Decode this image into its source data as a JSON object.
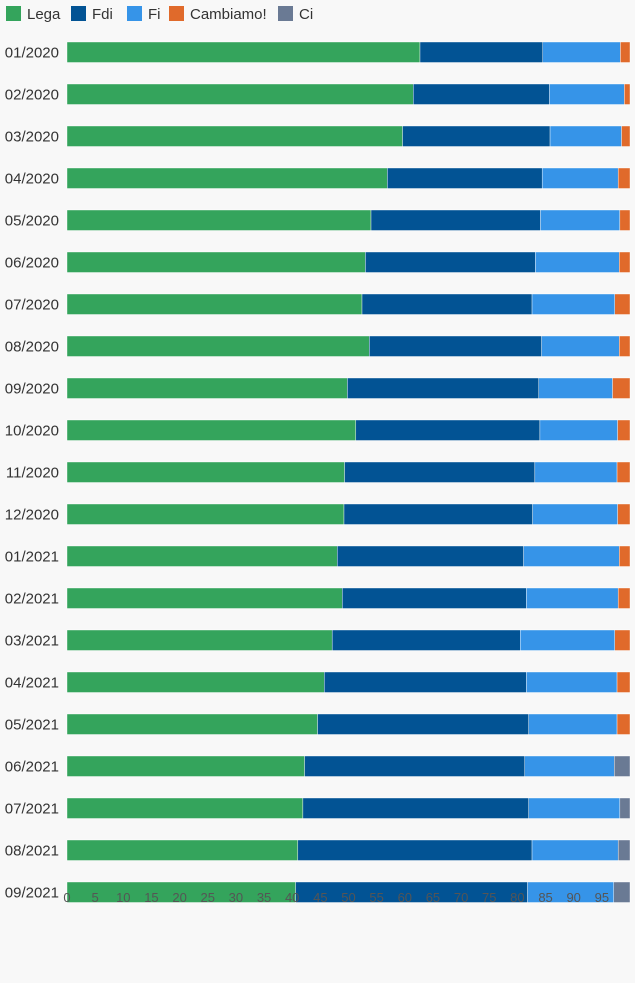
{
  "chart_data": {
    "type": "bar",
    "orientation": "horizontal",
    "stacked": true,
    "categories": [
      "01/2020",
      "02/2020",
      "03/2020",
      "04/2020",
      "05/2020",
      "06/2020",
      "07/2020",
      "08/2020",
      "09/2020",
      "10/2020",
      "11/2020",
      "12/2020",
      "01/2021",
      "02/2021",
      "03/2021",
      "04/2021",
      "05/2021",
      "06/2021",
      "07/2021",
      "08/2021",
      "09/2021"
    ],
    "series": [
      {
        "name": "Lega",
        "color": "#34a45c",
        "values": [
          62.7,
          61.5,
          59.6,
          56.9,
          54.0,
          53.0,
          52.4,
          53.7,
          49.8,
          51.3,
          49.3,
          49.2,
          48.0,
          48.9,
          47.1,
          45.7,
          44.5,
          42.2,
          41.9,
          41.0,
          40.6
        ]
      },
      {
        "name": "Fdi",
        "color": "#025394",
        "values": [
          21.8,
          24.2,
          26.2,
          27.5,
          30.1,
          30.2,
          30.2,
          30.6,
          34.0,
          32.7,
          33.8,
          33.5,
          33.1,
          32.7,
          33.4,
          35.9,
          37.5,
          39.1,
          40.1,
          41.6,
          41.2
        ]
      },
      {
        "name": "Fi",
        "color": "#3694e8",
        "values": [
          13.8,
          13.3,
          12.7,
          13.5,
          14.1,
          14.9,
          14.7,
          13.8,
          13.1,
          13.8,
          14.6,
          15.1,
          17.0,
          16.3,
          16.8,
          16.1,
          15.7,
          15.9,
          16.2,
          15.3,
          15.3
        ]
      },
      {
        "name": "Cambiamo!",
        "color": "#e06a2b",
        "values": [
          1.7,
          1.0,
          1.5,
          2.1,
          1.8,
          1.9,
          2.7,
          1.9,
          3.1,
          2.2,
          2.3,
          2.2,
          1.9,
          2.1,
          2.7,
          2.3,
          2.3,
          0,
          0,
          0,
          0
        ]
      },
      {
        "name": "Ci",
        "color": "#6a7a94",
        "values": [
          0,
          0,
          0,
          0,
          0,
          0,
          0,
          0,
          0,
          0,
          0,
          0,
          0,
          0,
          0,
          0,
          0,
          2.8,
          1.8,
          2.1,
          2.9
        ]
      }
    ],
    "xlim": [
      0,
      100
    ],
    "xticks": [
      0,
      5,
      10,
      15,
      20,
      25,
      30,
      35,
      40,
      45,
      50,
      55,
      60,
      65,
      70,
      75,
      80,
      85,
      90,
      95
    ],
    "legend_position": "top-left",
    "grid": false,
    "title": "",
    "xlabel": "",
    "ylabel": ""
  }
}
